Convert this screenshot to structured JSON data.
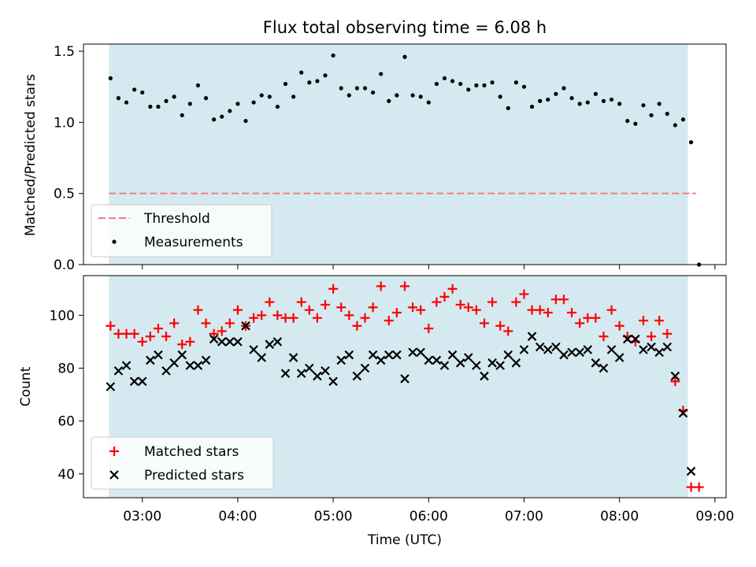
{
  "title": "Flux total observing time = 6.08 h",
  "colors": {
    "observing_span": "#d4eaf0",
    "threshold": "#f08080",
    "measurements": "#000000",
    "matched": "#ff0000",
    "predicted": "#000000"
  },
  "chart_data": [
    {
      "type": "scatter",
      "panel": "top",
      "ylabel": "Matched/Predicted stars",
      "ylim": [
        0.0,
        1.55
      ],
      "yticks": [
        "0.0",
        "0.5",
        "1.0",
        "1.5"
      ],
      "xlim": [
        "02:23",
        "09:07"
      ],
      "observing_span": [
        "02:39",
        "08:43"
      ],
      "legend_location": "lower-left",
      "threshold": {
        "name": "Threshold",
        "value": 0.5,
        "x": [
          "02:39",
          "08:48"
        ]
      },
      "series": [
        {
          "name": "Measurements",
          "x": [
            "02:40",
            "02:45",
            "02:50",
            "02:55",
            "03:00",
            "03:05",
            "03:10",
            "03:15",
            "03:20",
            "03:25",
            "03:30",
            "03:35",
            "03:40",
            "03:45",
            "03:50",
            "03:55",
            "04:00",
            "04:05",
            "04:10",
            "04:15",
            "04:20",
            "04:25",
            "04:30",
            "04:35",
            "04:40",
            "04:45",
            "04:50",
            "04:55",
            "05:00",
            "05:05",
            "05:10",
            "05:15",
            "05:20",
            "05:25",
            "05:30",
            "05:35",
            "05:40",
            "05:45",
            "05:50",
            "05:55",
            "06:00",
            "06:05",
            "06:10",
            "06:15",
            "06:20",
            "06:25",
            "06:30",
            "06:35",
            "06:40",
            "06:45",
            "06:50",
            "06:55",
            "07:00",
            "07:05",
            "07:10",
            "07:15",
            "07:20",
            "07:25",
            "07:30",
            "07:35",
            "07:40",
            "07:45",
            "07:50",
            "07:55",
            "08:00",
            "08:05",
            "08:10",
            "08:15",
            "08:20",
            "08:25",
            "08:30",
            "08:35",
            "08:40",
            "08:45",
            "08:50"
          ],
          "y": [
            1.31,
            1.17,
            1.14,
            1.23,
            1.21,
            1.11,
            1.11,
            1.15,
            1.18,
            1.05,
            1.13,
            1.26,
            1.17,
            1.02,
            1.04,
            1.08,
            1.13,
            1.01,
            1.14,
            1.19,
            1.18,
            1.11,
            1.27,
            1.18,
            1.35,
            1.28,
            1.29,
            1.33,
            1.47,
            1.24,
            1.19,
            1.24,
            1.24,
            1.21,
            1.34,
            1.15,
            1.19,
            1.46,
            1.19,
            1.18,
            1.14,
            1.27,
            1.31,
            1.29,
            1.27,
            1.23,
            1.26,
            1.26,
            1.28,
            1.18,
            1.1,
            1.28,
            1.25,
            1.11,
            1.15,
            1.16,
            1.2,
            1.24,
            1.17,
            1.13,
            1.14,
            1.2,
            1.15,
            1.16,
            1.13,
            1.01,
            0.99,
            1.12,
            1.05,
            1.13,
            1.06,
            0.98,
            1.02,
            0.86,
            0.0
          ]
        }
      ]
    },
    {
      "type": "scatter",
      "panel": "bottom",
      "xlabel": "Time (UTC)",
      "ylabel": "Count",
      "ylim": [
        31,
        115
      ],
      "yticks": [
        "40",
        "60",
        "80",
        "100"
      ],
      "xticks": [
        "03:00",
        "04:00",
        "05:00",
        "06:00",
        "07:00",
        "08:00",
        "09:00"
      ],
      "xlim": [
        "02:23",
        "09:07"
      ],
      "observing_span": [
        "02:39",
        "08:43"
      ],
      "legend_location": "lower-left",
      "series": [
        {
          "name": "Matched stars",
          "marker": "plus",
          "x": [
            "02:40",
            "02:45",
            "02:50",
            "02:55",
            "03:00",
            "03:05",
            "03:10",
            "03:15",
            "03:20",
            "03:25",
            "03:30",
            "03:35",
            "03:40",
            "03:45",
            "03:50",
            "03:55",
            "04:00",
            "04:05",
            "04:10",
            "04:15",
            "04:20",
            "04:25",
            "04:30",
            "04:35",
            "04:40",
            "04:45",
            "04:50",
            "04:55",
            "05:00",
            "05:05",
            "05:10",
            "05:15",
            "05:20",
            "05:25",
            "05:30",
            "05:35",
            "05:40",
            "05:45",
            "05:50",
            "05:55",
            "06:00",
            "06:05",
            "06:10",
            "06:15",
            "06:20",
            "06:25",
            "06:30",
            "06:35",
            "06:40",
            "06:45",
            "06:50",
            "06:55",
            "07:00",
            "07:05",
            "07:10",
            "07:15",
            "07:20",
            "07:25",
            "07:30",
            "07:35",
            "07:40",
            "07:45",
            "07:50",
            "07:55",
            "08:00",
            "08:05",
            "08:10",
            "08:15",
            "08:20",
            "08:25",
            "08:30",
            "08:35",
            "08:40",
            "08:45",
            "08:50"
          ],
          "y": [
            96,
            93,
            93,
            93,
            90,
            92,
            95,
            92,
            97,
            89,
            90,
            102,
            97,
            93,
            94,
            97,
            102,
            96,
            99,
            100,
            105,
            100,
            99,
            99,
            105,
            102,
            99,
            104,
            110,
            103,
            100,
            96,
            99,
            103,
            111,
            98,
            101,
            111,
            103,
            102,
            95,
            105,
            107,
            110,
            104,
            103,
            102,
            97,
            105,
            96,
            94,
            105,
            108,
            102,
            102,
            101,
            106,
            106,
            101,
            97,
            99,
            99,
            92,
            102,
            96,
            92,
            90,
            98,
            92,
            98,
            93,
            75,
            64,
            35,
            35
          ]
        },
        {
          "name": "Predicted stars",
          "marker": "x",
          "x": [
            "02:40",
            "02:45",
            "02:50",
            "02:55",
            "03:00",
            "03:05",
            "03:10",
            "03:15",
            "03:20",
            "03:25",
            "03:30",
            "03:35",
            "03:40",
            "03:45",
            "03:50",
            "03:55",
            "04:00",
            "04:05",
            "04:10",
            "04:15",
            "04:20",
            "04:25",
            "04:30",
            "04:35",
            "04:40",
            "04:45",
            "04:50",
            "04:55",
            "05:00",
            "05:05",
            "05:10",
            "05:15",
            "05:20",
            "05:25",
            "05:30",
            "05:35",
            "05:40",
            "05:45",
            "05:50",
            "05:55",
            "06:00",
            "06:05",
            "06:10",
            "06:15",
            "06:20",
            "06:25",
            "06:30",
            "06:35",
            "06:40",
            "06:45",
            "06:50",
            "06:55",
            "07:00",
            "07:05",
            "07:10",
            "07:15",
            "07:20",
            "07:25",
            "07:30",
            "07:35",
            "07:40",
            "07:45",
            "07:50",
            "07:55",
            "08:00",
            "08:05",
            "08:10",
            "08:15",
            "08:20",
            "08:25",
            "08:30",
            "08:35",
            "08:40",
            "08:45"
          ],
          "y": [
            73,
            79,
            81,
            75,
            75,
            83,
            85,
            79,
            82,
            85,
            81,
            81,
            83,
            91,
            90,
            90,
            90,
            96,
            87,
            84,
            89,
            90,
            78,
            84,
            78,
            80,
            77,
            79,
            75,
            83,
            85,
            77,
            80,
            85,
            83,
            85,
            85,
            76,
            86,
            86,
            83,
            83,
            81,
            85,
            82,
            84,
            81,
            77,
            82,
            81,
            85,
            82,
            87,
            92,
            88,
            87,
            88,
            85,
            86,
            86,
            87,
            82,
            80,
            87,
            84,
            91,
            91,
            87,
            88,
            86,
            88,
            77,
            63,
            41
          ]
        }
      ]
    }
  ]
}
